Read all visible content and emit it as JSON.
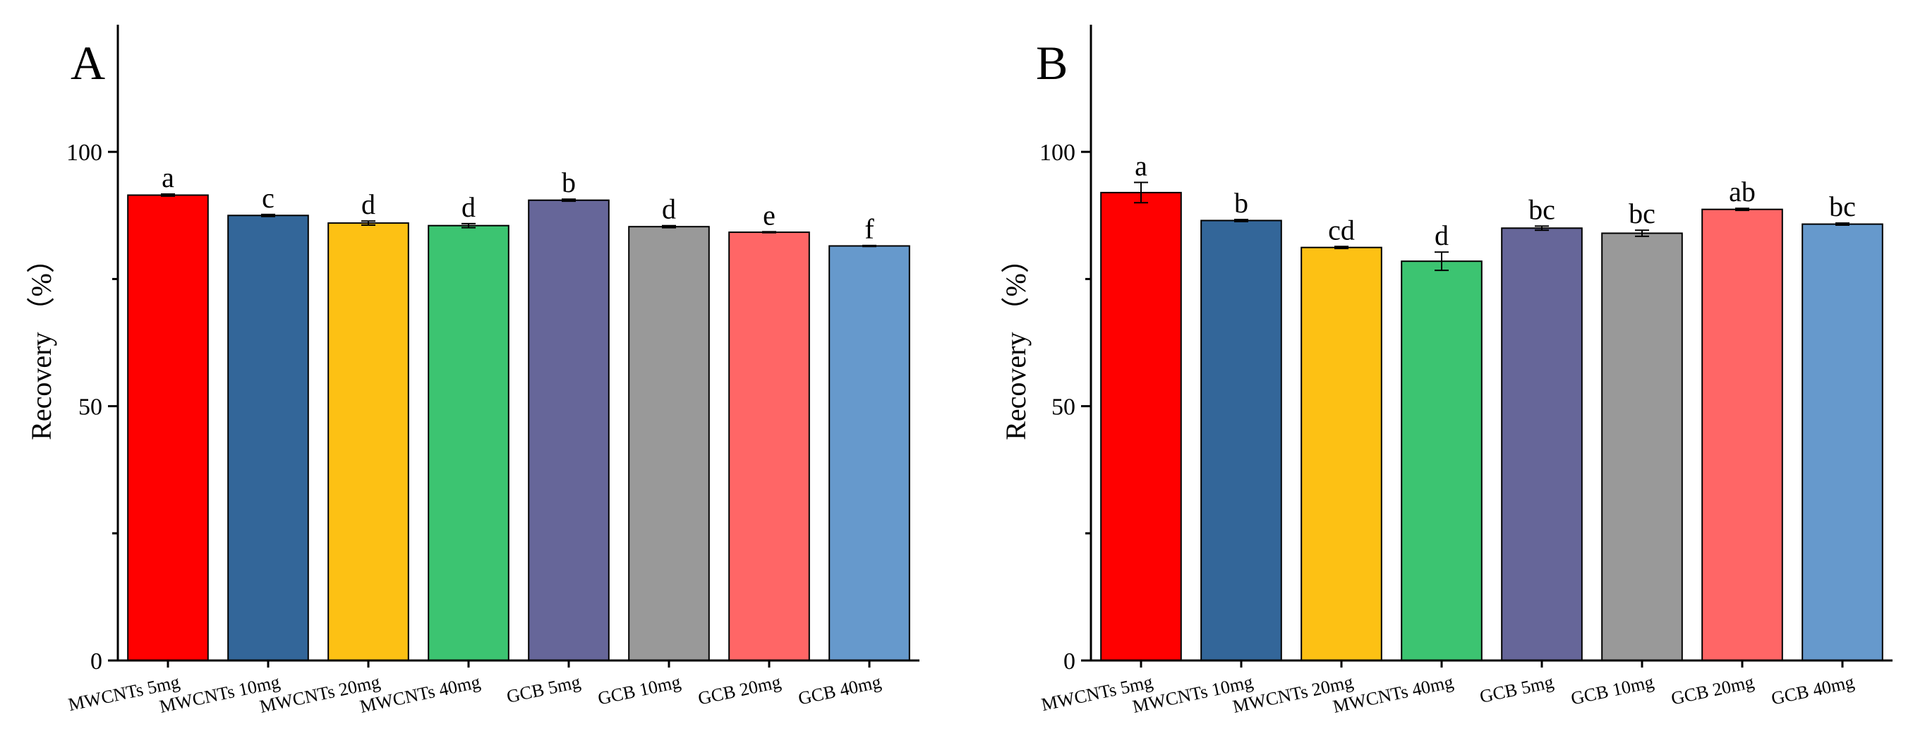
{
  "chart_data": [
    {
      "type": "bar",
      "panel_label": "A",
      "title": "",
      "xlabel": "",
      "ylabel": "Recovery （%）",
      "ylim": [
        0,
        125
      ],
      "yticks": [
        0,
        50,
        100
      ],
      "yticks_minor": [
        25,
        75
      ],
      "categories": [
        "MWCNTs 5mg",
        "MWCNTs 10mg",
        "MWCNTs 20mg",
        "MWCNTs 40mg",
        "GCB 5mg",
        "GCB 10mg",
        "GCB 20mg",
        "GCB 40mg"
      ],
      "values": [
        91.5,
        87.5,
        86.0,
        85.5,
        90.5,
        85.3,
        84.2,
        81.5
      ],
      "errors": [
        0.2,
        0.2,
        0.4,
        0.4,
        0.2,
        0.2,
        0.1,
        0.1
      ],
      "letters": [
        "a",
        "c",
        "d",
        "d",
        "b",
        "d",
        "e",
        "f"
      ],
      "colors": [
        "#ff0000",
        "#336699",
        "#fdc114",
        "#3cc471",
        "#666699",
        "#999999",
        "#ff6666",
        "#6699cc"
      ]
    },
    {
      "type": "bar",
      "panel_label": "B",
      "title": "",
      "xlabel": "",
      "ylabel": "Recovery （%）",
      "ylim": [
        0,
        125
      ],
      "yticks": [
        0,
        50,
        100
      ],
      "yticks_minor": [
        25,
        75
      ],
      "categories": [
        "MWCNTs 5mg",
        "MWCNTs 10mg",
        "MWCNTs 20mg",
        "MWCNTs 40mg",
        "GCB 5mg",
        "GCB 10mg",
        "GCB 20mg",
        "GCB 40mg"
      ],
      "values": [
        92.0,
        86.5,
        81.2,
        78.5,
        85.0,
        84.0,
        88.7,
        85.8
      ],
      "errors": [
        2.0,
        0.2,
        0.2,
        1.8,
        0.4,
        0.6,
        0.2,
        0.2
      ],
      "letters": [
        "a",
        "b",
        "cd",
        "d",
        "bc",
        "bc",
        "ab",
        "bc"
      ],
      "colors": [
        "#ff0000",
        "#336699",
        "#fdc114",
        "#3cc471",
        "#666699",
        "#999999",
        "#ff6666",
        "#6699cc"
      ]
    }
  ]
}
